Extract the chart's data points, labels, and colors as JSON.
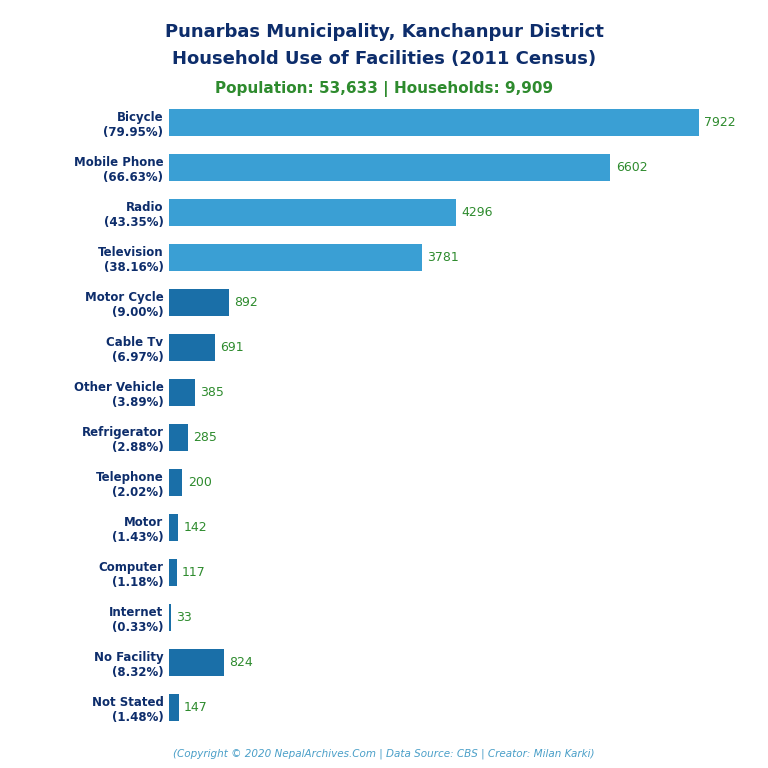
{
  "title_line1": "Punarbas Municipality, Kanchanpur District",
  "title_line2": "Household Use of Facilities (2011 Census)",
  "subtitle": "Population: 53,633 | Households: 9,909",
  "footer": "(Copyright © 2020 NepalArchives.Com | Data Source: CBS | Creator: Milan Karki)",
  "categories": [
    "Bicycle\n(79.95%)",
    "Mobile Phone\n(66.63%)",
    "Radio\n(43.35%)",
    "Television\n(38.16%)",
    "Motor Cycle\n(9.00%)",
    "Cable Tv\n(6.97%)",
    "Other Vehicle\n(3.89%)",
    "Refrigerator\n(2.88%)",
    "Telephone\n(2.02%)",
    "Motor\n(1.43%)",
    "Computer\n(1.18%)",
    "Internet\n(0.33%)",
    "No Facility\n(8.32%)",
    "Not Stated\n(1.48%)"
  ],
  "values": [
    7922,
    6602,
    4296,
    3781,
    892,
    691,
    385,
    285,
    200,
    142,
    117,
    33,
    824,
    147
  ],
  "bar_colors": [
    "#3a9fd4",
    "#3a9fd4",
    "#3a9fd4",
    "#3a9fd4",
    "#1a6fa8",
    "#1a6fa8",
    "#1a6fa8",
    "#1a6fa8",
    "#1a6fa8",
    "#1a6fa8",
    "#1a6fa8",
    "#1a6fa8",
    "#1a6fa8",
    "#1a6fa8"
  ],
  "title_color": "#0d2d6b",
  "subtitle_color": "#2e8b2e",
  "value_label_color": "#2e8b2e",
  "ylabel_color": "#0d2d6b",
  "footer_color": "#4a9fc8",
  "background_color": "#ffffff",
  "xlim": [
    0,
    8500
  ]
}
